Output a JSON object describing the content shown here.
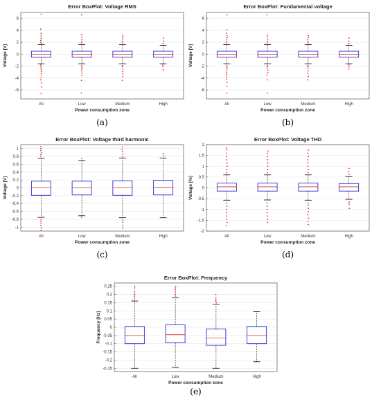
{
  "chart_data": [
    {
      "type": "box",
      "panel_label": "(a)",
      "title": "Error BoxPlot: Voltage RMS",
      "xlabel": "Power consumption zone",
      "ylabel": "Voltage [V]",
      "categories": [
        "All",
        "Low",
        "Medium",
        "High"
      ],
      "ylim": [
        -7.5,
        7
      ],
      "yticks": [
        -6,
        -4,
        -2,
        0,
        2,
        4,
        6
      ],
      "boxes": [
        {
          "q1": -0.5,
          "median": 0.0,
          "q3": 0.5,
          "whisker_low": -1.6,
          "whisker_high": 1.6,
          "outliers": [
            -6.6,
            -5.5,
            -4.8,
            -4.3,
            -3.9,
            -3.5,
            -3.2,
            -2.9,
            -2.6,
            -2.3,
            -2.0,
            -1.8,
            1.8,
            2.0,
            2.3,
            2.6,
            2.9,
            3.2,
            3.5,
            4.2,
            6.7
          ]
        },
        {
          "q1": -0.5,
          "median": 0.0,
          "q3": 0.5,
          "whisker_low": -1.6,
          "whisker_high": 1.6,
          "outliers": [
            -6.5,
            -4.4,
            -3.6,
            -3.2,
            -2.8,
            -2.5,
            -2.2,
            -1.9,
            1.9,
            2.2,
            2.5,
            2.9,
            3.3,
            6.6
          ]
        },
        {
          "q1": -0.5,
          "median": 0.0,
          "q3": 0.5,
          "whisker_low": -1.6,
          "whisker_high": 1.6,
          "outliers": [
            -4.4,
            -3.8,
            -3.3,
            -2.9,
            -2.5,
            -2.1,
            -1.9,
            1.9,
            2.2,
            2.5,
            2.8,
            3.1
          ]
        },
        {
          "q1": -0.5,
          "median": 0.0,
          "q3": 0.5,
          "whisker_low": -1.6,
          "whisker_high": 1.5,
          "outliers": [
            -2.6,
            -2.1,
            -1.8,
            1.8,
            2.2,
            2.7
          ]
        }
      ]
    },
    {
      "type": "box",
      "panel_label": "(b)",
      "title": "Error BoxPlot: Fundamental voltage",
      "xlabel": "Power consumption zone",
      "ylabel": "Voltage [V]",
      "categories": [
        "All",
        "Low",
        "Medium",
        "High"
      ],
      "ylim": [
        -7.5,
        7
      ],
      "yticks": [
        -6,
        -4,
        -2,
        0,
        2,
        4,
        6
      ],
      "boxes": [
        {
          "q1": -0.5,
          "median": 0.0,
          "q3": 0.5,
          "whisker_low": -1.6,
          "whisker_high": 1.6,
          "outliers": [
            -6.5,
            -5.4,
            -4.7,
            -4.2,
            -3.8,
            -3.4,
            -3.1,
            -2.8,
            -2.5,
            -2.2,
            -1.9,
            1.9,
            2.2,
            2.5,
            2.8,
            3.1,
            3.5,
            4.1,
            6.6
          ]
        },
        {
          "q1": -0.5,
          "median": 0.0,
          "q3": 0.5,
          "whisker_low": -1.6,
          "whisker_high": 1.6,
          "outliers": [
            -6.5,
            -4.3,
            -3.5,
            -3.1,
            -2.7,
            -2.4,
            -2.1,
            -1.9,
            1.9,
            2.2,
            2.5,
            2.9,
            3.2,
            6.6
          ]
        },
        {
          "q1": -0.5,
          "median": 0.0,
          "q3": 0.5,
          "whisker_low": -1.6,
          "whisker_high": 1.6,
          "outliers": [
            -4.3,
            -3.7,
            -3.2,
            -2.8,
            -2.4,
            -2.1,
            -1.9,
            1.9,
            2.2,
            2.5,
            2.8,
            3.1
          ]
        },
        {
          "q1": -0.5,
          "median": 0.0,
          "q3": 0.5,
          "whisker_low": -1.6,
          "whisker_high": 1.5,
          "outliers": [
            -2.5,
            -2.1,
            -1.8,
            1.8,
            2.2,
            2.7
          ]
        }
      ]
    },
    {
      "type": "box",
      "panel_label": "(c)",
      "title": "Error BoxPlot: Voltage third harmonic",
      "xlabel": "Power consumption zone",
      "ylabel": "Voltage [V]",
      "categories": [
        "All",
        "Low",
        "Medium",
        "High"
      ],
      "ylim": [
        -1.1,
        1.1
      ],
      "yticks": [
        -1,
        -0.8,
        -0.6,
        -0.4,
        -0.2,
        0,
        0.2,
        0.4,
        0.6,
        0.8,
        1
      ],
      "boxes": [
        {
          "q1": -0.19,
          "median": 0.0,
          "q3": 0.17,
          "whisker_low": -0.75,
          "whisker_high": 0.75,
          "outliers": [
            -1.08,
            -1.02,
            -0.96,
            -0.9,
            -0.85,
            -0.8,
            0.8,
            0.85,
            0.9,
            0.95,
            1.0,
            1.05
          ]
        },
        {
          "q1": -0.18,
          "median": 0.0,
          "q3": 0.17,
          "whisker_low": -0.71,
          "whisker_high": 0.7,
          "outliers": [
            -0.75,
            0.75
          ]
        },
        {
          "q1": -0.19,
          "median": 0.0,
          "q3": 0.18,
          "whisker_low": -0.76,
          "whisker_high": 0.76,
          "outliers": [
            -1.02,
            -0.95,
            -0.88,
            -0.82,
            0.8,
            0.86,
            0.92,
            0.98,
            1.04
          ]
        },
        {
          "q1": -0.18,
          "median": 0.01,
          "q3": 0.19,
          "whisker_low": -0.76,
          "whisker_high": 0.76,
          "outliers": [
            0.82,
            0.87
          ]
        }
      ]
    },
    {
      "type": "box",
      "panel_label": "(d)",
      "title": "Error BoxPlot: Voltage THD",
      "xlabel": "Power consumption zone",
      "ylabel": "Voltage [%]",
      "categories": [
        "All",
        "Low",
        "Medium",
        "High"
      ],
      "ylim": [
        -2,
        2
      ],
      "yticks": [
        -2,
        -1.5,
        -1,
        -0.5,
        0,
        0.5,
        1,
        1.5,
        2
      ],
      "boxes": [
        {
          "q1": -0.15,
          "median": 0.05,
          "q3": 0.22,
          "whisker_low": -0.57,
          "whisker_high": 0.6,
          "outliers": [
            -1.75,
            -1.6,
            -1.45,
            -1.3,
            -1.15,
            -1.0,
            -0.85,
            -0.7,
            0.7,
            0.85,
            1.0,
            1.15,
            1.3,
            1.45,
            1.6,
            1.75,
            1.85
          ]
        },
        {
          "q1": -0.15,
          "median": 0.05,
          "q3": 0.22,
          "whisker_low": -0.56,
          "whisker_high": 0.6,
          "outliers": [
            -1.6,
            -1.45,
            -1.3,
            -1.15,
            -1.0,
            -0.85,
            -0.7,
            0.7,
            0.85,
            1.0,
            1.15,
            1.3,
            1.45,
            1.6,
            1.7
          ]
        },
        {
          "q1": -0.15,
          "median": 0.05,
          "q3": 0.22,
          "whisker_low": -0.57,
          "whisker_high": 0.6,
          "outliers": [
            -1.7,
            -1.55,
            -1.4,
            -1.25,
            -1.1,
            -0.95,
            -0.8,
            -0.7,
            0.7,
            0.85,
            1.0,
            1.15,
            1.3,
            1.45,
            1.6,
            1.75
          ]
        },
        {
          "q1": -0.15,
          "median": 0.05,
          "q3": 0.2,
          "whisker_low": -0.53,
          "whisker_high": 0.52,
          "outliers": [
            -0.95,
            -0.75,
            -0.65,
            0.62,
            0.75,
            0.9
          ]
        }
      ]
    },
    {
      "type": "box",
      "panel_label": "(e)",
      "title": "Error BoxPlot: Frequency",
      "xlabel": "Power consumption zone",
      "ylabel": "Frequency [Hz]",
      "categories": [
        "All",
        "Low",
        "Medium",
        "High"
      ],
      "ylim": [
        -0.27,
        0.27
      ],
      "yticks": [
        -0.25,
        -0.2,
        -0.15,
        -0.1,
        -0.05,
        0,
        0.05,
        0.1,
        0.15,
        0.2,
        0.25
      ],
      "boxes": [
        {
          "q1": -0.1,
          "median": -0.05,
          "q3": 0.005,
          "whisker_low": -0.25,
          "whisker_high": 0.16,
          "outliers": [
            0.17,
            0.18,
            0.19,
            0.2,
            0.21,
            0.22,
            0.24,
            0.25
          ]
        },
        {
          "q1": -0.095,
          "median": -0.045,
          "q3": 0.015,
          "whisker_low": -0.245,
          "whisker_high": 0.18,
          "outliers": [
            0.19,
            0.2,
            0.21,
            0.22,
            0.23,
            0.24,
            0.25
          ]
        },
        {
          "q1": -0.11,
          "median": -0.065,
          "q3": -0.01,
          "whisker_low": -0.25,
          "whisker_high": 0.14,
          "outliers": [
            0.15,
            0.16,
            0.17,
            0.18,
            0.2
          ]
        },
        {
          "q1": -0.1,
          "median": -0.05,
          "q3": 0.005,
          "whisker_low": -0.21,
          "whisker_high": 0.095,
          "outliers": []
        }
      ]
    }
  ]
}
